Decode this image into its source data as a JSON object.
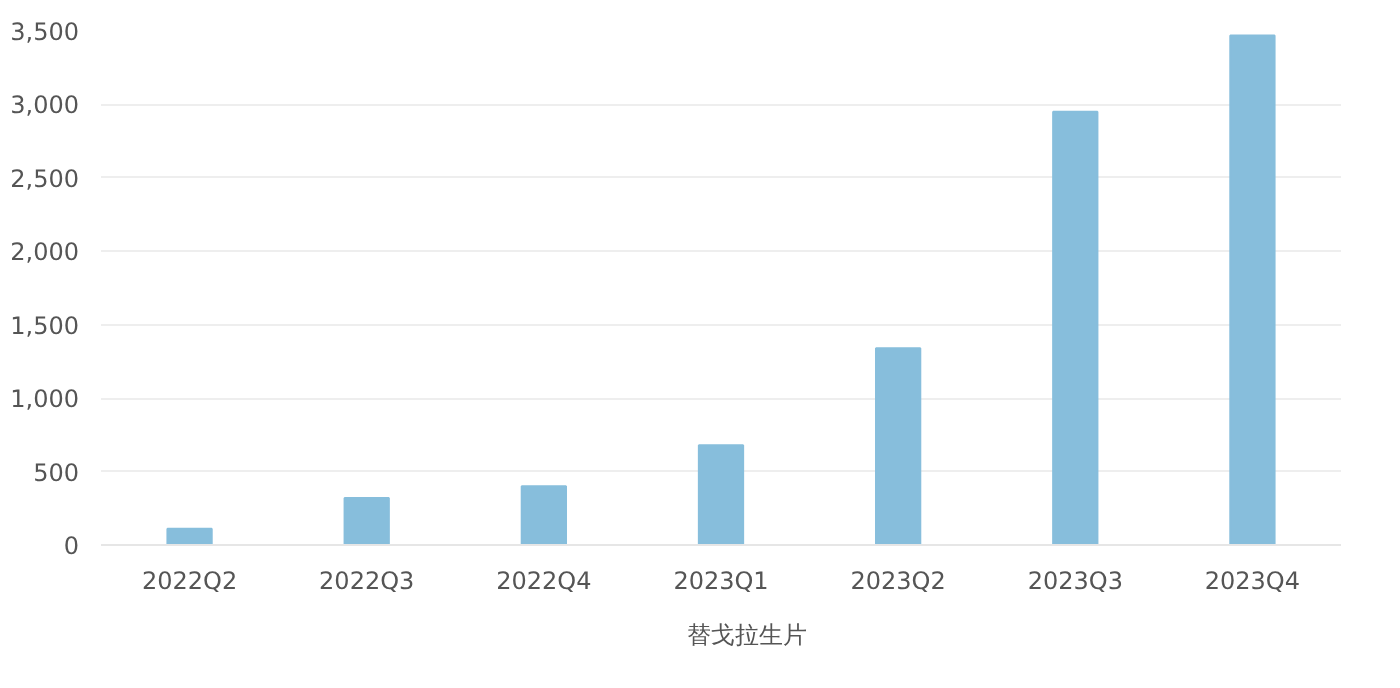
{
  "chart_data": {
    "type": "bar",
    "categories": [
      "2022Q2",
      "2022Q3",
      "2022Q4",
      "2023Q1",
      "2023Q2",
      "2023Q3",
      "2023Q4"
    ],
    "series": [
      {
        "name": "替戈拉生片",
        "color": "#87bedc",
        "values": [
          110,
          320,
          400,
          680,
          1340,
          2950,
          3470
        ]
      }
    ],
    "ylim": [
      0,
      3500
    ],
    "yticks": [
      {
        "value": 0,
        "label": "0"
      },
      {
        "value": 500,
        "label": "500"
      },
      {
        "value": 1000,
        "label": "1,000"
      },
      {
        "value": 1500,
        "label": "1,500"
      },
      {
        "value": 2000,
        "label": "2,000"
      },
      {
        "value": 2500,
        "label": "2,500"
      },
      {
        "value": 3000,
        "label": "3,000"
      },
      {
        "value": 3500,
        "label": "3,500"
      }
    ],
    "grid": "y",
    "legend": "bottom"
  }
}
